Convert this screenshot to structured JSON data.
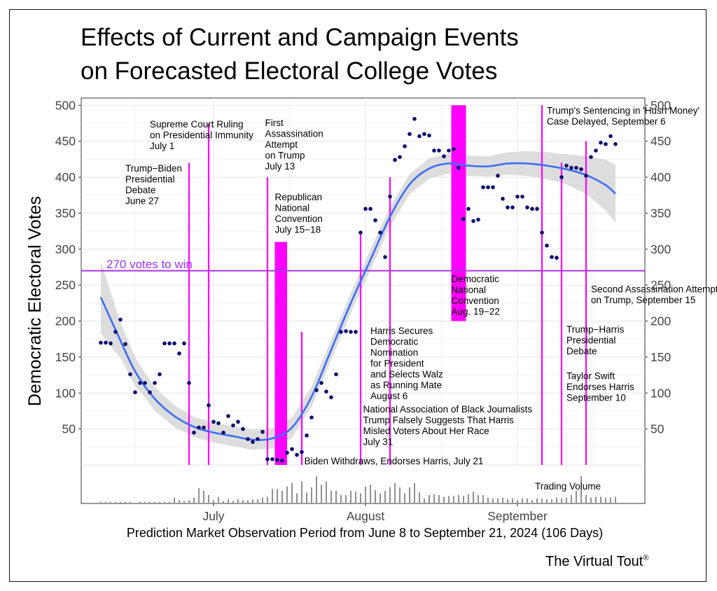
{
  "chart_data": {
    "type": "scatter",
    "title_lines": [
      "Effects of Current and Campaign Events",
      "on Forecasted Electoral College Votes"
    ],
    "ylabel": "Democratic Electoral Votes",
    "xlabel": "Prediction Market Observation Period from June 8 to September 21, 2024 (106 Days)",
    "ylim": [
      0,
      510
    ],
    "y_ticks": [
      50,
      100,
      150,
      200,
      250,
      300,
      350,
      400,
      450,
      500
    ],
    "x_day_range": [
      -3,
      112
    ],
    "x_ticks": [
      {
        "day": 24,
        "label": "July"
      },
      {
        "day": 55,
        "label": "August"
      },
      {
        "day": 86,
        "label": "September"
      }
    ],
    "threshold": {
      "value": 270,
      "label": "270 votes to win",
      "color": "#aa33dd"
    },
    "colors": {
      "points": "#0a0a6e",
      "smooth": "#3b6ef5",
      "band": "#d9d9d9",
      "events": "#ff00ff",
      "grid": "#ebebeb"
    },
    "points": [
      {
        "day": 1,
        "value": 170
      },
      {
        "day": 2,
        "value": 170
      },
      {
        "day": 3,
        "value": 169
      },
      {
        "day": 4,
        "value": 185
      },
      {
        "day": 5,
        "value": 202
      },
      {
        "day": 6,
        "value": 168
      },
      {
        "day": 7,
        "value": 126
      },
      {
        "day": 8,
        "value": 101
      },
      {
        "day": 9,
        "value": 114
      },
      {
        "day": 10,
        "value": 114
      },
      {
        "day": 11,
        "value": 101
      },
      {
        "day": 12,
        "value": 114
      },
      {
        "day": 13,
        "value": 126
      },
      {
        "day": 14,
        "value": 169
      },
      {
        "day": 15,
        "value": 169
      },
      {
        "day": 16,
        "value": 169
      },
      {
        "day": 17,
        "value": 155
      },
      {
        "day": 18,
        "value": 169
      },
      {
        "day": 19,
        "value": 114
      },
      {
        "day": 20,
        "value": 45
      },
      {
        "day": 21,
        "value": 52
      },
      {
        "day": 22,
        "value": 52
      },
      {
        "day": 23,
        "value": 83
      },
      {
        "day": 24,
        "value": 60
      },
      {
        "day": 25,
        "value": 58
      },
      {
        "day": 26,
        "value": 45
      },
      {
        "day": 27,
        "value": 68
      },
      {
        "day": 28,
        "value": 55
      },
      {
        "day": 29,
        "value": 60
      },
      {
        "day": 30,
        "value": 50
      },
      {
        "day": 31,
        "value": 36
      },
      {
        "day": 32,
        "value": 32
      },
      {
        "day": 33,
        "value": 36
      },
      {
        "day": 34,
        "value": 46
      },
      {
        "day": 35,
        "value": 8
      },
      {
        "day": 36,
        "value": 8
      },
      {
        "day": 37,
        "value": 7
      },
      {
        "day": 38,
        "value": 6
      },
      {
        "day": 39,
        "value": 17
      },
      {
        "day": 40,
        "value": 22
      },
      {
        "day": 41,
        "value": 14
      },
      {
        "day": 42,
        "value": 18
      },
      {
        "day": 43,
        "value": 41
      },
      {
        "day": 44,
        "value": 66
      },
      {
        "day": 45,
        "value": 104
      },
      {
        "day": 46,
        "value": 114
      },
      {
        "day": 47,
        "value": 102
      },
      {
        "day": 48,
        "value": 94
      },
      {
        "day": 49,
        "value": 126
      },
      {
        "day": 50,
        "value": 185
      },
      {
        "day": 51,
        "value": 186
      },
      {
        "day": 52,
        "value": 185
      },
      {
        "day": 53,
        "value": 185
      },
      {
        "day": 54,
        "value": 323
      },
      {
        "day": 55,
        "value": 356
      },
      {
        "day": 56,
        "value": 356
      },
      {
        "day": 57,
        "value": 340
      },
      {
        "day": 58,
        "value": 323
      },
      {
        "day": 59,
        "value": 289
      },
      {
        "day": 60,
        "value": 373
      },
      {
        "day": 61,
        "value": 424
      },
      {
        "day": 62,
        "value": 428
      },
      {
        "day": 63,
        "value": 443
      },
      {
        "day": 64,
        "value": 460
      },
      {
        "day": 65,
        "value": 481
      },
      {
        "day": 66,
        "value": 457
      },
      {
        "day": 67,
        "value": 460
      },
      {
        "day": 68,
        "value": 458
      },
      {
        "day": 69,
        "value": 437
      },
      {
        "day": 70,
        "value": 437
      },
      {
        "day": 71,
        "value": 429
      },
      {
        "day": 72,
        "value": 437
      },
      {
        "day": 73,
        "value": 439
      },
      {
        "day": 74,
        "value": 413
      },
      {
        "day": 75,
        "value": 342
      },
      {
        "day": 76,
        "value": 356
      },
      {
        "day": 77,
        "value": 339
      },
      {
        "day": 78,
        "value": 341
      },
      {
        "day": 79,
        "value": 386
      },
      {
        "day": 80,
        "value": 386
      },
      {
        "day": 81,
        "value": 386
      },
      {
        "day": 82,
        "value": 402
      },
      {
        "day": 83,
        "value": 370
      },
      {
        "day": 84,
        "value": 358
      },
      {
        "day": 85,
        "value": 358
      },
      {
        "day": 86,
        "value": 373
      },
      {
        "day": 87,
        "value": 373
      },
      {
        "day": 88,
        "value": 358
      },
      {
        "day": 89,
        "value": 356
      },
      {
        "day": 90,
        "value": 356
      },
      {
        "day": 91,
        "value": 323
      },
      {
        "day": 92,
        "value": 305
      },
      {
        "day": 93,
        "value": 289
      },
      {
        "day": 94,
        "value": 288
      },
      {
        "day": 95,
        "value": 400
      },
      {
        "day": 96,
        "value": 416
      },
      {
        "day": 97,
        "value": 413
      },
      {
        "day": 98,
        "value": 413
      },
      {
        "day": 99,
        "value": 411
      },
      {
        "day": 100,
        "value": 402
      },
      {
        "day": 101,
        "value": 428
      },
      {
        "day": 102,
        "value": 437
      },
      {
        "day": 103,
        "value": 448
      },
      {
        "day": 104,
        "value": 446
      },
      {
        "day": 105,
        "value": 457
      },
      {
        "day": 106,
        "value": 446
      }
    ],
    "smooth": [
      {
        "day": 1,
        "value": 233
      },
      {
        "day": 4,
        "value": 188
      },
      {
        "day": 8,
        "value": 130
      },
      {
        "day": 12,
        "value": 92
      },
      {
        "day": 16,
        "value": 68
      },
      {
        "day": 20,
        "value": 53
      },
      {
        "day": 24,
        "value": 45
      },
      {
        "day": 28,
        "value": 40
      },
      {
        "day": 32,
        "value": 35
      },
      {
        "day": 36,
        "value": 37
      },
      {
        "day": 40,
        "value": 52
      },
      {
        "day": 44,
        "value": 95
      },
      {
        "day": 48,
        "value": 160
      },
      {
        "day": 52,
        "value": 225
      },
      {
        "day": 56,
        "value": 285
      },
      {
        "day": 60,
        "value": 345
      },
      {
        "day": 64,
        "value": 390
      },
      {
        "day": 68,
        "value": 412
      },
      {
        "day": 72,
        "value": 419
      },
      {
        "day": 76,
        "value": 416
      },
      {
        "day": 80,
        "value": 415
      },
      {
        "day": 84,
        "value": 419
      },
      {
        "day": 88,
        "value": 419
      },
      {
        "day": 92,
        "value": 416
      },
      {
        "day": 96,
        "value": 411
      },
      {
        "day": 100,
        "value": 403
      },
      {
        "day": 104,
        "value": 389
      },
      {
        "day": 106,
        "value": 377
      }
    ],
    "band_halfwidth": [
      {
        "day": 1,
        "value": 50
      },
      {
        "day": 5,
        "value": 25
      },
      {
        "day": 10,
        "value": 17
      },
      {
        "day": 20,
        "value": 14
      },
      {
        "day": 50,
        "value": 14
      },
      {
        "day": 80,
        "value": 14
      },
      {
        "day": 95,
        "value": 20
      },
      {
        "day": 100,
        "value": 26
      },
      {
        "day": 106,
        "value": 40
      }
    ],
    "event_lines": [
      {
        "day": 19,
        "top": 420
      },
      {
        "day": 23,
        "top": 474
      },
      {
        "day": 35,
        "top": 400
      },
      {
        "day": 42,
        "top": 185
      },
      {
        "day": 54,
        "top": 324
      },
      {
        "day": 60,
        "top": 400
      },
      {
        "day": 91,
        "top": 500
      },
      {
        "day": 95,
        "top": 420
      },
      {
        "day": 100,
        "top": 450
      }
    ],
    "event_bars": [
      {
        "day_start": 36.5,
        "day_end": 39,
        "bottom": 0,
        "top": 310
      },
      {
        "day_start": 72.5,
        "day_end": 75.5,
        "bottom": 200,
        "top": 500
      }
    ],
    "annotations": [
      {
        "day": 11,
        "value": 469,
        "lines": [
          "Supreme Court Ruling",
          "on Presidential Immunity",
          "July 1"
        ]
      },
      {
        "day": 6,
        "value": 408,
        "lines": [
          "Trump−Biden",
          "Presidential",
          "Debate",
          "June 27"
        ]
      },
      {
        "day": 34.5,
        "value": 471,
        "lines": [
          "First",
          "Assassination",
          "Attempt",
          "on Trump",
          "July 13"
        ]
      },
      {
        "day": 36.5,
        "value": 368,
        "lines": [
          "Republican",
          "National",
          "Convention",
          "July 15−18"
        ]
      },
      {
        "day": 72.5,
        "value": 254,
        "lines": [
          "Democratic",
          "National",
          "Convention",
          "Aug. 19−22"
        ]
      },
      {
        "day": 92,
        "value": 488,
        "lines": [
          "Trump's Sentencing in 'Hush Money'",
          "Case Delayed, September 6"
        ]
      },
      {
        "day": 101,
        "value": 240,
        "lines": [
          "Second Assassination Attempt",
          "on Trump, September 15"
        ]
      },
      {
        "day": 56,
        "value": 182,
        "lines": [
          "Harris Secures",
          "Democratic",
          "Nomination",
          "for President",
          "and Selects Walz",
          "as Running Mate",
          "August 6"
        ]
      },
      {
        "day": 96,
        "value": 184,
        "lines": [
          "Trump−Harris",
          "Presidential",
          "Debate"
        ]
      },
      {
        "day": 96,
        "value": 119,
        "lines": [
          "Taylor Swift",
          "Endorses Harris",
          "September 10"
        ]
      },
      {
        "day": 54.5,
        "value": 73,
        "lines": [
          "National Association of Black Journalists",
          "Trump Falsely Suggests That Harris",
          "Misled Voters About Her Race",
          "July 31"
        ]
      },
      {
        "day": 42.5,
        "value": 1,
        "lines": [
          "Biden Withdraws, Endorses Harris, July 21"
        ]
      }
    ],
    "volume_label": "Trading Volume",
    "volume": [
      1,
      1,
      1,
      1,
      1,
      1,
      1,
      0,
      1,
      1,
      1,
      1,
      1,
      1,
      1,
      6,
      3,
      2,
      3,
      6,
      17,
      14,
      9,
      3,
      7,
      2,
      4,
      2,
      4,
      3,
      3,
      4,
      4,
      6,
      7,
      16,
      16,
      14,
      19,
      23,
      11,
      25,
      12,
      18,
      31,
      21,
      25,
      14,
      14,
      9,
      9,
      14,
      13,
      11,
      19,
      21,
      15,
      11,
      14,
      18,
      23,
      18,
      11,
      18,
      23,
      12,
      5,
      9,
      10,
      9,
      7,
      8,
      8,
      9,
      8,
      10,
      13,
      9,
      9,
      6,
      5,
      5,
      6,
      4,
      5,
      3,
      5,
      5,
      3,
      5,
      5,
      4,
      4,
      6,
      5,
      6,
      9,
      14,
      31,
      9,
      6,
      7,
      7,
      6,
      6,
      7
    ]
  },
  "brand": {
    "name": "The Virtual Tout",
    "mark": "®"
  }
}
